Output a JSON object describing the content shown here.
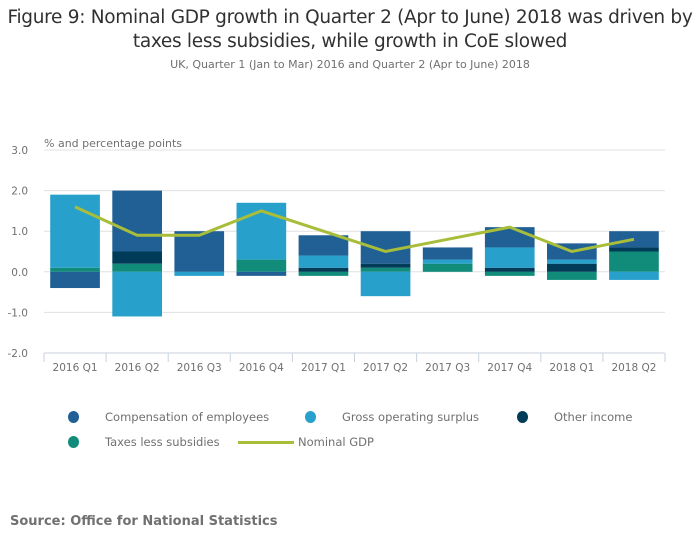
{
  "title": "Figure 9: Nominal GDP growth in Quarter 2 (Apr to June) 2018 was driven by taxes less subsidies, while growth in CoE slowed",
  "title_lines": [
    "Figure 9: Nominal GDP growth in Quarter 2 (Apr to June) 2018 was driven by",
    "taxes less subsidies, while growth in CoE slowed"
  ],
  "subtitle": "UK, Quarter 1 (Jan to Mar) 2016 and Quarter 2 (Apr to June) 2018",
  "source": "Source: Office for National Statistics",
  "chart_data": {
    "type": "bar",
    "stacked": true,
    "title": "Figure 9: Nominal GDP growth in Quarter 2 (Apr to June) 2018 was driven by taxes less subsidies, while growth in CoE slowed",
    "subtitle": "UK, Quarter 1 (Jan to Mar) 2016 and Quarter 2 (Apr to June) 2018",
    "ylabel": "% and percentage points",
    "xlabel": "",
    "ylim": [
      -2.0,
      3.0
    ],
    "yticks": [
      3.0,
      2.0,
      1.0,
      0.0,
      -1.0,
      -2.0
    ],
    "ytick_labels": [
      "3.0",
      "2.0",
      "1.0",
      "0.0",
      "-1.0",
      "-2.0"
    ],
    "grid": true,
    "legend_position": "bottom",
    "categories": [
      "2016 Q1",
      "2016 Q2",
      "2016 Q3",
      "2016 Q4",
      "2017 Q1",
      "2017 Q2",
      "2017 Q3",
      "2017 Q4",
      "2018 Q1",
      "2018 Q2"
    ],
    "series": [
      {
        "name": "Compensation of employees",
        "kind": "bar",
        "color": "#206095",
        "values": [
          -0.4,
          1.5,
          1.0,
          -0.1,
          0.5,
          0.8,
          0.3,
          0.5,
          0.4,
          0.4
        ]
      },
      {
        "name": "Gross operating surplus",
        "kind": "bar",
        "color": "#27a0cc",
        "values": [
          1.8,
          -1.1,
          -0.1,
          1.4,
          0.3,
          -0.6,
          0.1,
          0.5,
          0.1,
          -0.2
        ]
      },
      {
        "name": "Other income",
        "kind": "bar",
        "color": "#003c57",
        "values": [
          0.0,
          0.3,
          0.0,
          0.0,
          0.1,
          0.1,
          0.0,
          0.1,
          0.2,
          0.1
        ]
      },
      {
        "name": "Taxes less subsidies",
        "kind": "bar",
        "color": "#118c7b",
        "values": [
          0.1,
          0.2,
          0.0,
          0.3,
          -0.1,
          0.1,
          0.2,
          -0.1,
          -0.2,
          0.5
        ]
      },
      {
        "name": "Nominal GDP",
        "kind": "line",
        "color": "#a8bd3a",
        "values": [
          1.6,
          0.9,
          0.9,
          1.5,
          1.0,
          0.5,
          0.8,
          1.1,
          0.5,
          0.8
        ]
      }
    ]
  },
  "legend": [
    {
      "label": "Compensation of employees",
      "color": "#206095",
      "marker": "dot"
    },
    {
      "label": "Gross operating surplus",
      "color": "#27a0cc",
      "marker": "dot"
    },
    {
      "label": "Other income",
      "color": "#003c57",
      "marker": "dot"
    },
    {
      "label": "Taxes less subsidies",
      "color": "#118c7b",
      "marker": "dot"
    },
    {
      "label": "Nominal GDP",
      "color": "#a8bd3a",
      "marker": "line"
    }
  ]
}
